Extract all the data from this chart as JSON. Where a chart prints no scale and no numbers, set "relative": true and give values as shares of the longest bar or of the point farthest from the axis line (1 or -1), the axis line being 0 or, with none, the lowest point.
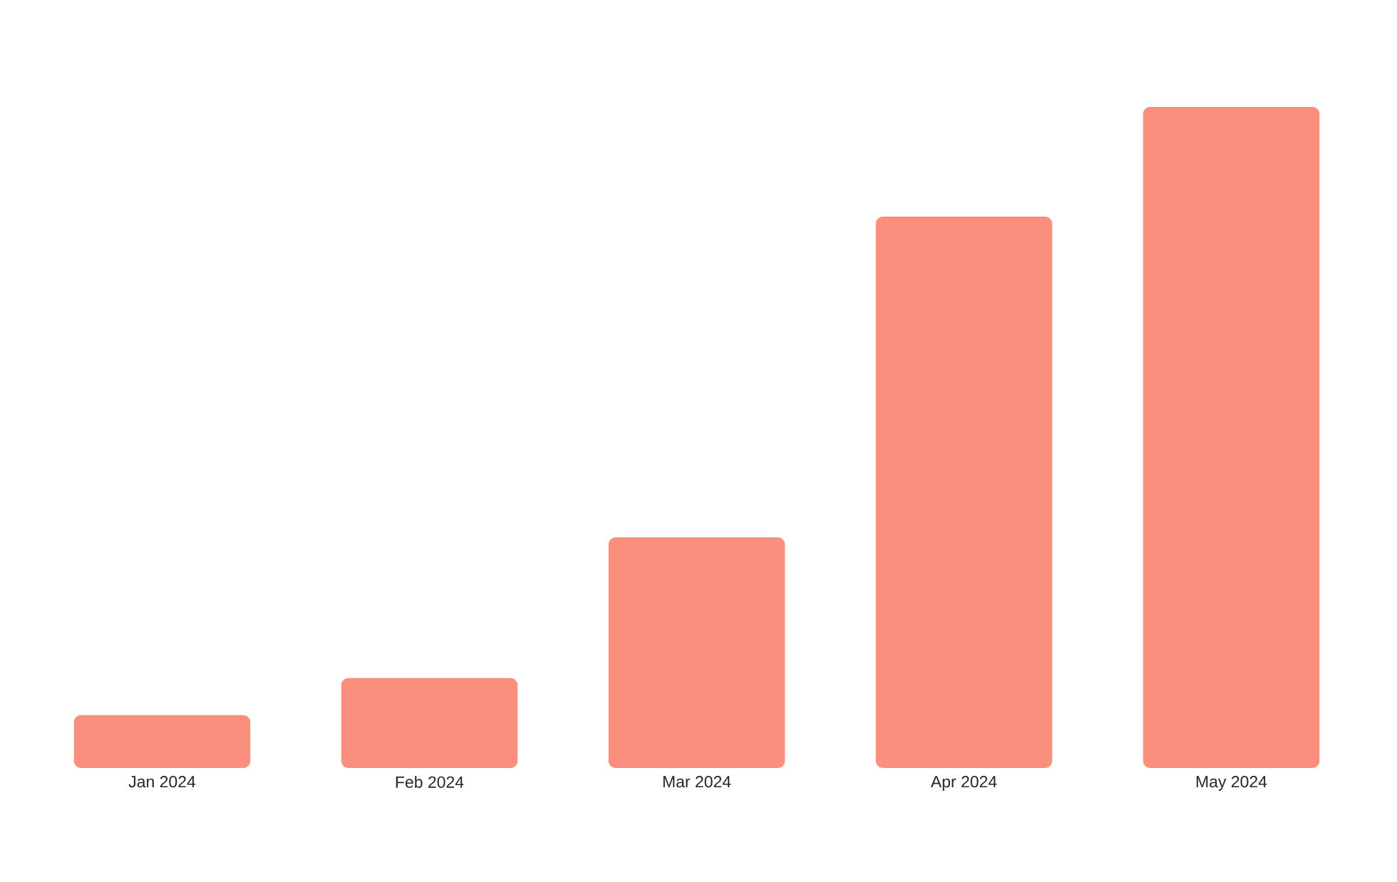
{
  "chart_data": {
    "type": "bar",
    "relative": true,
    "categories": [
      "Jan 2024",
      "Feb 2024",
      "Mar 2024",
      "Apr 2024",
      "May 2024"
    ],
    "values": [
      0.08,
      0.136,
      0.349,
      0.834,
      1
    ],
    "color": "#fb8f7e"
  }
}
